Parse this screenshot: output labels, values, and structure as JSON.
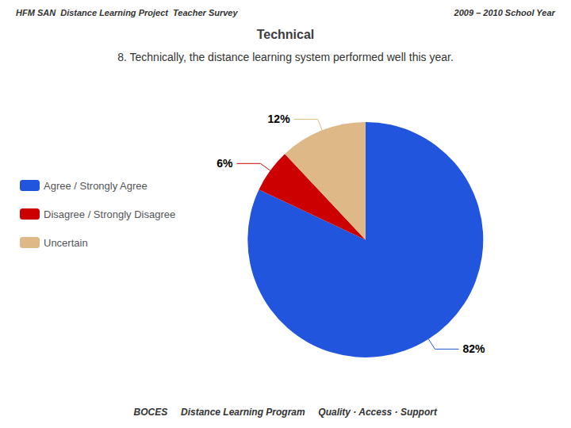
{
  "chart_data": {
    "type": "pie",
    "title": "Technical",
    "subtitle": "8. Technically, the distance learning system performed well this year.",
    "annotations": [
      "HFM SAN  Distance Learning Project  Teacher Survey",
      "2009 – 2010 School Year",
      "BOCES",
      "Distance Learning Program",
      "Quality · Access · Support"
    ],
    "categories": [
      "Agree / Strongly Agree",
      "Disagree / Strongly Disagree",
      "Uncertain"
    ],
    "values": [
      82,
      6,
      12
    ],
    "value_labels": [
      "82%",
      "6%",
      "12%"
    ],
    "colors": [
      "#2255DD",
      "#CC0000",
      "#DEB887"
    ],
    "data_labels": true,
    "legend": "left"
  }
}
